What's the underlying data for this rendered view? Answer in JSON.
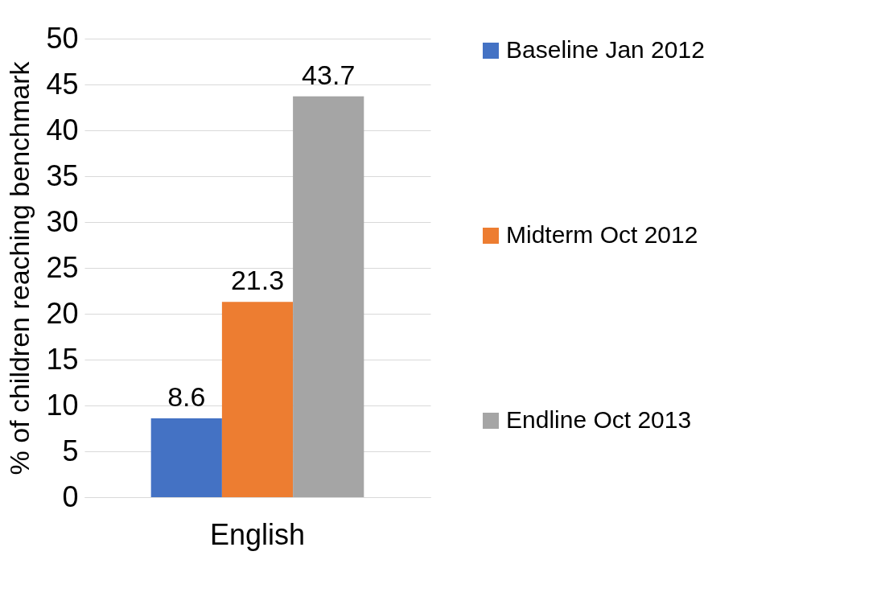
{
  "chart_data": {
    "type": "bar",
    "ylabel": "% of children reaching benchmark",
    "categories": [
      "English"
    ],
    "series": [
      {
        "name": "Baseline Jan 2012",
        "color": "#4472c4",
        "values": [
          8.6
        ]
      },
      {
        "name": "Midterm Oct 2012",
        "color": "#ed7d31",
        "values": [
          21.3
        ]
      },
      {
        "name": "Endline Oct 2013",
        "color": "#a5a5a5",
        "values": [
          43.7
        ]
      }
    ],
    "ylim": [
      0,
      50
    ],
    "yticks": [
      0,
      5,
      10,
      15,
      20,
      25,
      30,
      35,
      40,
      45,
      50
    ],
    "grid": "y",
    "legend": "right",
    "data_labels": true
  }
}
